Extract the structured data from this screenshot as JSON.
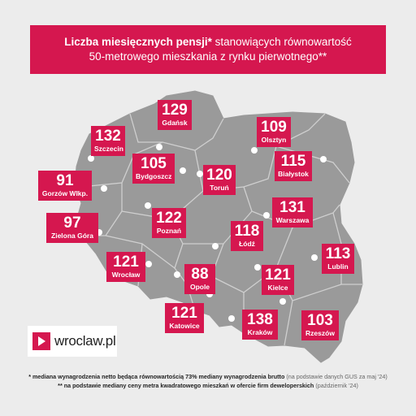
{
  "title": {
    "line1_bold": "Liczba miesięcznych pensji*",
    "line1_rest": " stanowiących równowartość",
    "line2": "50-metrowego mieszkania z rynku pierwotnego**"
  },
  "cities": [
    {
      "id": "gdansk",
      "value": "129",
      "name": "Gdańsk"
    },
    {
      "id": "szczecin",
      "value": "132",
      "name": "Szczecin"
    },
    {
      "id": "olsztyn",
      "value": "109",
      "name": "Olsztyn"
    },
    {
      "id": "bydgoszcz",
      "value": "105",
      "name": "Bydgoszcz"
    },
    {
      "id": "torun",
      "value": "120",
      "name": "Toruń"
    },
    {
      "id": "bialystok",
      "value": "115",
      "name": "Białystok"
    },
    {
      "id": "gorzow",
      "value": "91",
      "name": "Gorzów Wlkp."
    },
    {
      "id": "warszawa",
      "value": "131",
      "name": "Warszawa"
    },
    {
      "id": "zielona-gora",
      "value": "97",
      "name": "Zielona Góra"
    },
    {
      "id": "poznan",
      "value": "122",
      "name": "Poznań"
    },
    {
      "id": "lodz",
      "value": "118",
      "name": "Łódź"
    },
    {
      "id": "lublin",
      "value": "113",
      "name": "Lublin"
    },
    {
      "id": "wroclaw",
      "value": "121",
      "name": "Wrocław"
    },
    {
      "id": "opole",
      "value": "88",
      "name": "Opole"
    },
    {
      "id": "kielce",
      "value": "121",
      "name": "Kielce"
    },
    {
      "id": "katowice",
      "value": "121",
      "name": "Katowice"
    },
    {
      "id": "krakow",
      "value": "138",
      "name": "Kraków"
    },
    {
      "id": "rzeszow",
      "value": "103",
      "name": "Rzeszów"
    }
  ],
  "logo": {
    "text": "wroclaw.pl"
  },
  "footnotes": {
    "note1_main": "* mediana wynagrodzenia netto będąca równowartością 73% mediany wynagrodzenia brutto",
    "note1_source": " (na podstawie danych GUS za maj '24)",
    "note2_main": "** na podstawie mediany ceny metra kwadratowego mieszkań w ofercie firm deweloperskich",
    "note2_source": " (październik '24)"
  },
  "colors": {
    "accent": "#d5174f",
    "map_fill": "#9a9a9a",
    "border": "#cfcfcf",
    "background": "#ececec"
  }
}
